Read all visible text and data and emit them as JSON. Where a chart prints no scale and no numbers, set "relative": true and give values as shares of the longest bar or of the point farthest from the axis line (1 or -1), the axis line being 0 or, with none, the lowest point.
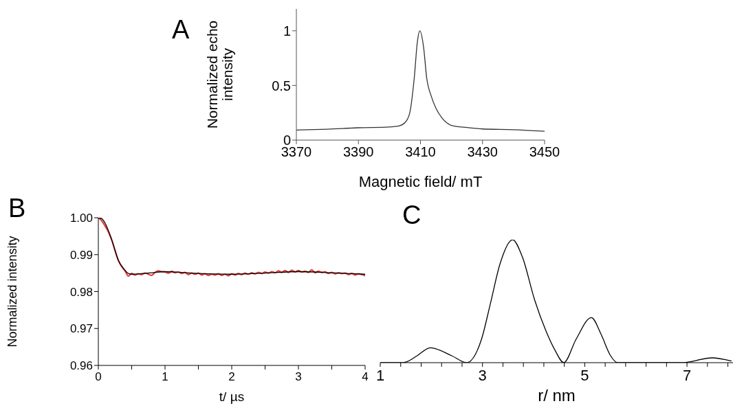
{
  "chart_data": [
    {
      "type": "line",
      "title": "A",
      "xlabel": "Magnetic field/ mT",
      "ylabel": "Normalized echo intensity",
      "xlim": [
        3370,
        3450
      ],
      "xticks": [
        3370,
        3390,
        3410,
        3430,
        3450
      ],
      "ylim": [
        0,
        1.2
      ],
      "yticks": [
        0,
        0.5,
        1
      ],
      "series": [
        {
          "color": "#333333",
          "x": [
            3370,
            3380,
            3390,
            3400,
            3403,
            3405,
            3406.5,
            3408,
            3409,
            3409.8,
            3411,
            3412,
            3413.5,
            3415,
            3417,
            3420,
            3425,
            3430,
            3440,
            3450
          ],
          "values": [
            0.092,
            0.1,
            0.113,
            0.12,
            0.129,
            0.16,
            0.244,
            0.57,
            0.9,
            1.0,
            0.85,
            0.57,
            0.4,
            0.29,
            0.2,
            0.135,
            0.115,
            0.102,
            0.095,
            0.081
          ]
        }
      ]
    },
    {
      "type": "line",
      "title": "B",
      "xlabel": "t/ µs",
      "ylabel": "Normalized intensity",
      "xlim": [
        0,
        4
      ],
      "xticks": [
        0,
        {
          "value": 0.5,
          "label": null
        },
        1,
        {
          "value": 1.5,
          "label": null
        },
        2,
        {
          "value": 2.5,
          "label": null
        },
        3,
        {
          "value": 3.5,
          "label": null
        },
        4
      ],
      "ylim": [
        0.96,
        1.0
      ],
      "yticks": [
        {
          "value": 0.96,
          "label": "0.96"
        },
        {
          "value": 0.97,
          "label": "0.97"
        },
        {
          "value": 0.98,
          "label": "0.98"
        },
        {
          "value": 0.99,
          "label": "0.99"
        },
        {
          "value": 1.0,
          "label": "1.00"
        }
      ],
      "series": [
        {
          "color": "#e03c3c",
          "x": [
            0,
            0.05,
            0.1,
            0.15,
            0.2,
            0.25,
            0.3,
            0.35,
            0.4,
            0.45,
            0.5,
            0.55,
            0.6,
            0.65,
            0.7,
            0.75,
            0.8,
            0.85,
            0.9,
            0.95,
            1.0,
            1.05,
            1.1,
            1.15,
            1.2,
            1.25,
            1.3,
            1.35,
            1.4,
            1.45,
            1.5,
            1.55,
            1.6,
            1.65,
            1.7,
            1.75,
            1.8,
            1.85,
            1.9,
            1.95,
            2.0,
            2.05,
            2.1,
            2.15,
            2.2,
            2.25,
            2.3,
            2.35,
            2.4,
            2.45,
            2.5,
            2.55,
            2.6,
            2.65,
            2.7,
            2.75,
            2.8,
            2.85,
            2.9,
            2.95,
            3.0,
            3.05,
            3.1,
            3.15,
            3.2,
            3.25,
            3.3,
            3.35,
            3.4,
            3.45,
            3.5,
            3.55,
            3.6,
            3.65,
            3.7,
            3.75,
            3.8,
            3.85,
            3.9,
            3.95,
            4.0
          ],
          "values": [
            1.0,
            0.9992,
            0.9978,
            0.9962,
            0.994,
            0.9912,
            0.9885,
            0.9868,
            0.9856,
            0.9842,
            0.9849,
            0.9845,
            0.9848,
            0.9846,
            0.985,
            0.9847,
            0.9844,
            0.9852,
            0.9856,
            0.9854,
            0.9853,
            0.985,
            0.9855,
            0.9851,
            0.9853,
            0.9849,
            0.9852,
            0.9846,
            0.985,
            0.9847,
            0.985,
            0.9845,
            0.9848,
            0.9844,
            0.9847,
            0.9845,
            0.9848,
            0.9844,
            0.9847,
            0.9843,
            0.9848,
            0.9845,
            0.9849,
            0.9846,
            0.985,
            0.9847,
            0.9851,
            0.9848,
            0.9852,
            0.9849,
            0.9853,
            0.985,
            0.9854,
            0.9851,
            0.9856,
            0.9852,
            0.9857,
            0.9852,
            0.9858,
            0.9853,
            0.9857,
            0.9853,
            0.9855,
            0.9852,
            0.9859,
            0.9851,
            0.9855,
            0.9852,
            0.9854,
            0.9849,
            0.9852,
            0.9848,
            0.9851,
            0.9849,
            0.985,
            0.9846,
            0.9849,
            0.9845,
            0.9848,
            0.9846,
            0.9843
          ]
        },
        {
          "color": "#000000",
          "x": [
            0,
            0.05,
            0.1,
            0.2,
            0.3,
            0.4,
            0.45,
            0.5,
            0.8,
            1.0,
            1.5,
            2.0,
            2.5,
            3.0,
            3.5,
            4.0
          ],
          "values": [
            1.0,
            0.9998,
            0.9986,
            0.9941,
            0.9884,
            0.9858,
            0.9849,
            0.9847,
            0.9851,
            0.9854,
            0.9849,
            0.9847,
            0.985,
            0.9854,
            0.9851,
            0.9847
          ]
        }
      ]
    },
    {
      "type": "line",
      "title": "C",
      "xlabel": "r/ nm",
      "relative": true,
      "xlim": [
        1,
        7.9
      ],
      "xticks": [
        1,
        {
          "value": 1.4,
          "label": null
        },
        {
          "value": 1.8,
          "label": null
        },
        {
          "value": 2.2,
          "label": null
        },
        {
          "value": 2.6,
          "label": null
        },
        3,
        {
          "value": 3.4,
          "label": null
        },
        {
          "value": 3.8,
          "label": null
        },
        {
          "value": 4.2,
          "label": null
        },
        {
          "value": 4.6,
          "label": null
        },
        5,
        {
          "value": 5.4,
          "label": null
        },
        {
          "value": 5.8,
          "label": null
        },
        {
          "value": 6.2,
          "label": null
        },
        {
          "value": 6.6,
          "label": null
        },
        7,
        {
          "value": 7.4,
          "label": null
        },
        {
          "value": 7.8,
          "label": null
        }
      ],
      "series": [
        {
          "color": "#000000",
          "x": [
            1,
            1.4,
            1.5,
            1.72,
            1.98,
            2.4,
            2.69,
            2.98,
            3.16,
            3.34,
            3.59,
            3.78,
            4.02,
            4.24,
            4.42,
            4.59,
            4.83,
            5.13,
            5.32,
            5.5,
            5.64,
            6.9,
            7.49,
            7.87
          ],
          "values": [
            0,
            0,
            0.005,
            0.056,
            0.121,
            0.056,
            0,
            0.19,
            0.49,
            0.8,
            1.0,
            0.86,
            0.51,
            0.26,
            0.1,
            0,
            0.19,
            0.367,
            0.23,
            0.06,
            0,
            0,
            0.039,
            0.013
          ]
        }
      ]
    }
  ]
}
